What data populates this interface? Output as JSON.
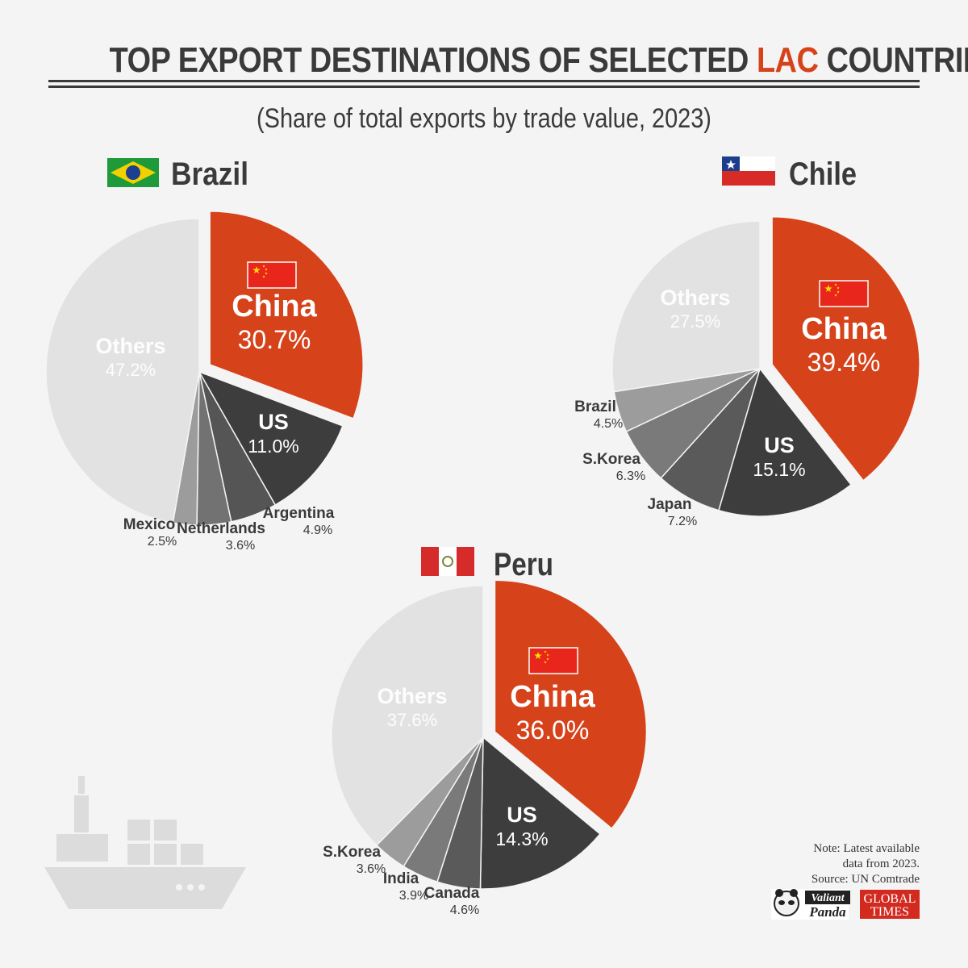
{
  "header": {
    "title_part1": "TOP EXPORT DESTINATIONS OF SELECTED ",
    "title_accent": "LAC",
    "title_part2": " COUNTRIES",
    "subtitle": "(Share of total exports by trade value, 2023)"
  },
  "colors": {
    "china": "#d6421a",
    "us": "#3d3d3d",
    "others": "#e2e2e2",
    "text_dark": "#3a3a3a"
  },
  "chart_data": [
    {
      "type": "pie",
      "title": "Brazil",
      "flag": "brazil-flag",
      "slices": [
        {
          "label": "China",
          "value": 30.7,
          "display": "30.7%",
          "color": "#d6421a",
          "exploded": true
        },
        {
          "label": "US",
          "value": 11.0,
          "display": "11.0%",
          "color": "#3d3d3d"
        },
        {
          "label": "Argentina",
          "value": 4.9,
          "display": "4.9%",
          "color": "#555555"
        },
        {
          "label": "Netherlands",
          "value": 3.6,
          "display": "3.6%",
          "color": "#727272"
        },
        {
          "label": "Mexico",
          "value": 2.5,
          "display": "2.5%",
          "color": "#9c9c9c"
        },
        {
          "label": "Others",
          "value": 47.2,
          "display": "47.2%",
          "color": "#e2e2e2"
        }
      ]
    },
    {
      "type": "pie",
      "title": "Chile",
      "flag": "chile-flag",
      "slices": [
        {
          "label": "China",
          "value": 39.4,
          "display": "39.4%",
          "color": "#d6421a",
          "exploded": true
        },
        {
          "label": "US",
          "value": 15.1,
          "display": "15.1%",
          "color": "#3d3d3d"
        },
        {
          "label": "Japan",
          "value": 7.2,
          "display": "7.2%",
          "color": "#5a5a5a"
        },
        {
          "label": "S.Korea",
          "value": 6.3,
          "display": "6.3%",
          "color": "#7a7a7a"
        },
        {
          "label": "Brazil",
          "value": 4.5,
          "display": "4.5%",
          "color": "#9c9c9c"
        },
        {
          "label": "Others",
          "value": 27.5,
          "display": "27.5%",
          "color": "#e2e2e2"
        }
      ]
    },
    {
      "type": "pie",
      "title": "Peru",
      "flag": "peru-flag",
      "slices": [
        {
          "label": "China",
          "value": 36.0,
          "display": "36.0%",
          "color": "#d6421a",
          "exploded": true
        },
        {
          "label": "US",
          "value": 14.3,
          "display": "14.3%",
          "color": "#3d3d3d"
        },
        {
          "label": "Canada",
          "value": 4.6,
          "display": "4.6%",
          "color": "#5a5a5a"
        },
        {
          "label": "India",
          "value": 3.9,
          "display": "3.9%",
          "color": "#7a7a7a"
        },
        {
          "label": "S.Korea",
          "value": 3.6,
          "display": "3.6%",
          "color": "#9c9c9c"
        },
        {
          "label": "Others",
          "value": 37.6,
          "display": "37.6%",
          "color": "#e2e2e2"
        }
      ]
    }
  ],
  "footer": {
    "note_line1": "Note: Latest available",
    "note_line2": "data from 2023.",
    "source": "Source: UN Comtrade",
    "logo1_line1": "Valiant",
    "logo1_line2": "Panda",
    "logo2_line1": "GLOBAL",
    "logo2_line2": "TIMES"
  },
  "decoration": {
    "illustration": "cargo-ship-icon"
  }
}
